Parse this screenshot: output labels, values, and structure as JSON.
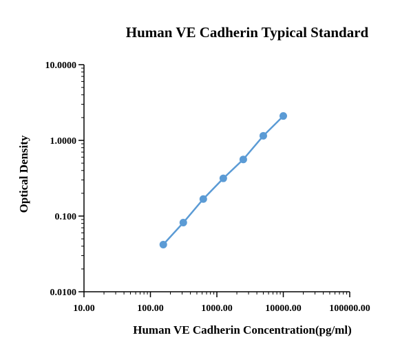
{
  "chart_data": {
    "type": "line",
    "title": "Human VE Cadherin Typical Standard",
    "xlabel": "Human VE Cadherin Concentration(pg/ml)",
    "ylabel": "Optical Density",
    "x_scale": "log",
    "y_scale": "log",
    "xlim": [
      10,
      100000
    ],
    "ylim": [
      0.01,
      10
    ],
    "x_ticks": [
      "10.00",
      "100.00",
      "1000.00",
      "10000.00",
      "100000.00"
    ],
    "y_ticks": [
      "0.0100",
      "0.100",
      "1.0000",
      "10.0000"
    ],
    "grid": false,
    "series_color": "#5b9bd5",
    "series": [
      {
        "x": [
          156.25,
          312.5,
          625,
          1250,
          2500,
          5000,
          10000
        ],
        "y": [
          0.042,
          0.082,
          0.168,
          0.315,
          0.56,
          1.15,
          2.1
        ]
      }
    ]
  }
}
